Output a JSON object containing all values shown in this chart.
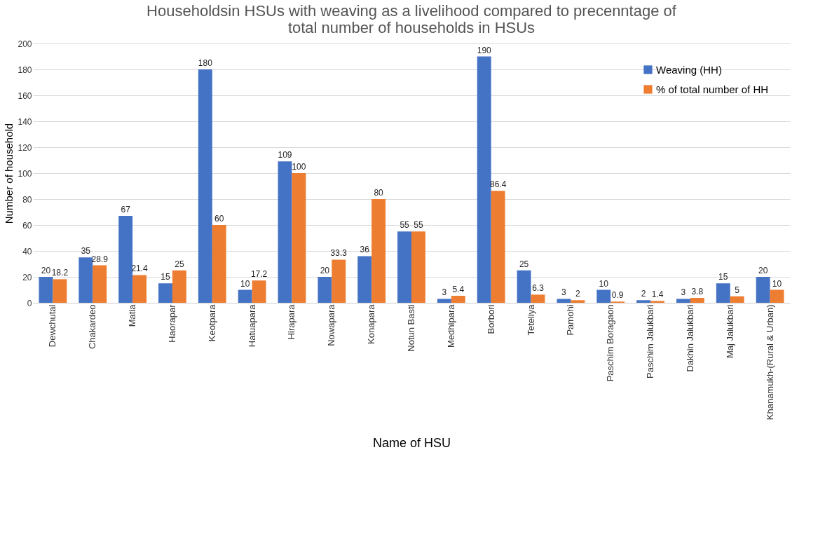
{
  "chart_data": {
    "type": "bar",
    "title": "Householdsin HSUs with weaving as a livelihood compared to precenntage of total number of households in HSUs",
    "xlabel": "Name of HSU",
    "ylabel": "Number of household",
    "categories": [
      "Dewchutal",
      "Chakardeo",
      "Matia",
      "Haorapar",
      "Keotpara",
      "Hatuapara",
      "Hirapara",
      "Nowapara",
      "Konapara",
      "Notun Basti",
      "Medhipara",
      "Borbori",
      "Teteliya",
      "Pamohi",
      "Paschim Boragaon",
      "Paschim Jalukbari",
      "Dakhin Jalukbari",
      "Maj Jalukbari",
      "Khanamukh-(Rural & Urban)"
    ],
    "series": [
      {
        "name": "Weaving (HH)",
        "color": "#4472c4",
        "values": [
          20,
          35,
          67,
          15,
          180,
          10,
          109,
          20,
          36,
          55,
          3,
          190,
          25,
          3,
          10,
          2,
          3,
          15,
          20
        ]
      },
      {
        "name": "% of total number of HH",
        "color": "#ed7d31",
        "values": [
          18.2,
          28.9,
          21.4,
          25,
          60,
          17.2,
          100,
          33.3,
          80,
          55,
          5.4,
          86.4,
          6.3,
          2,
          0.9,
          1.4,
          3.8,
          5,
          10
        ]
      }
    ],
    "ylim": [
      0,
      200
    ],
    "yticks": [
      0,
      20,
      40,
      60,
      80,
      100,
      120,
      140,
      160,
      180,
      200
    ],
    "grid": "y",
    "legend": "top right",
    "data_labels": true
  }
}
